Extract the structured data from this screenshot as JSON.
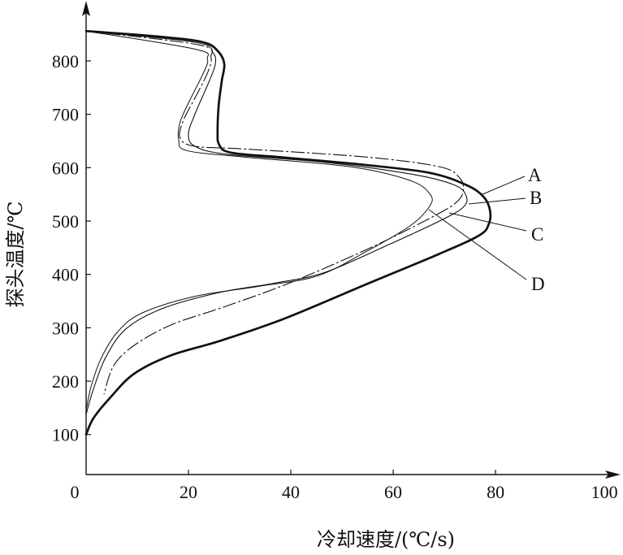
{
  "chart_data": {
    "type": "line",
    "xlabel": "冷却速度/(℃/s)",
    "ylabel": "探头温度/℃",
    "xticks": [
      0,
      20,
      40,
      60,
      80,
      100
    ],
    "yticks": [
      100,
      200,
      300,
      400,
      500,
      600,
      700,
      800
    ],
    "xlim": [
      0,
      103
    ],
    "ylim": [
      25,
      905
    ],
    "grid": false,
    "series": [
      {
        "name": "A",
        "points": [
          [
            0,
            856
          ],
          [
            14.9,
            845
          ],
          [
            22.9,
            835
          ],
          [
            25.7,
            819
          ],
          [
            27.0,
            795
          ],
          [
            26.5,
            762
          ],
          [
            25.9,
            716
          ],
          [
            25.7,
            670
          ],
          [
            26.0,
            643
          ],
          [
            28.4,
            628
          ],
          [
            38.7,
            619
          ],
          [
            54.6,
            605
          ],
          [
            67.3,
            590
          ],
          [
            74.4,
            567
          ],
          [
            77.6,
            546
          ],
          [
            78.9,
            521
          ],
          [
            78.7,
            495
          ],
          [
            76.8,
            473
          ],
          [
            68.9,
            438
          ],
          [
            54.6,
            381
          ],
          [
            38.7,
            317
          ],
          [
            26.0,
            275
          ],
          [
            16.5,
            248
          ],
          [
            9.4,
            214
          ],
          [
            4.6,
            168
          ],
          [
            1.4,
            130
          ],
          [
            0,
            100
          ]
        ]
      },
      {
        "name": "B",
        "points": [
          [
            0,
            856
          ],
          [
            21.3,
            835
          ],
          [
            24.8,
            815
          ],
          [
            25.2,
            792
          ],
          [
            23.7,
            754
          ],
          [
            21.3,
            701
          ],
          [
            20.0,
            663
          ],
          [
            21.3,
            640
          ],
          [
            27.6,
            625
          ],
          [
            46.7,
            610
          ],
          [
            64.1,
            587
          ],
          [
            72.1,
            567
          ],
          [
            74.3,
            546
          ],
          [
            73.7,
            526
          ],
          [
            69.7,
            503
          ],
          [
            59.4,
            457
          ],
          [
            46.7,
            404
          ],
          [
            37.1,
            384
          ],
          [
            26.0,
            366
          ],
          [
            14.9,
            336
          ],
          [
            7.8,
            298
          ],
          [
            3.8,
            244
          ],
          [
            1.4,
            184
          ],
          [
            0,
            138
          ]
        ]
      },
      {
        "name": "C",
        "points": [
          [
            0,
            856
          ],
          [
            22.1,
            830
          ],
          [
            24.4,
            807
          ],
          [
            23.7,
            777
          ],
          [
            21.3,
            731
          ],
          [
            18.9,
            686
          ],
          [
            18.4,
            655
          ],
          [
            21.3,
            640
          ],
          [
            30.8,
            635
          ],
          [
            54.6,
            620
          ],
          [
            68.9,
            602
          ],
          [
            72.9,
            582
          ],
          [
            73.7,
            556
          ],
          [
            72.1,
            533
          ],
          [
            67.3,
            506
          ],
          [
            57.8,
            460
          ],
          [
            46.7,
            412
          ],
          [
            37.1,
            374
          ],
          [
            26.0,
            336
          ],
          [
            16.5,
            305
          ],
          [
            9.4,
            267
          ],
          [
            5.4,
            229
          ],
          [
            3.5,
            176
          ]
        ]
      },
      {
        "name": "D",
        "points": [
          [
            0,
            856
          ],
          [
            21.3,
            822
          ],
          [
            23.7,
            804
          ],
          [
            22.9,
            777
          ],
          [
            20.5,
            731
          ],
          [
            18.4,
            686
          ],
          [
            18.1,
            652
          ],
          [
            19.7,
            632
          ],
          [
            30.8,
            620
          ],
          [
            51.4,
            602
          ],
          [
            63.3,
            576
          ],
          [
            67.3,
            549
          ],
          [
            67.0,
            526
          ],
          [
            63.3,
            491
          ],
          [
            54.6,
            442
          ],
          [
            45.1,
            397
          ],
          [
            34.0,
            378
          ],
          [
            21.3,
            359
          ],
          [
            11.0,
            328
          ],
          [
            6.2,
            293
          ],
          [
            3.0,
            244
          ],
          [
            1.0,
            191
          ],
          [
            0,
            146
          ]
        ]
      }
    ]
  }
}
